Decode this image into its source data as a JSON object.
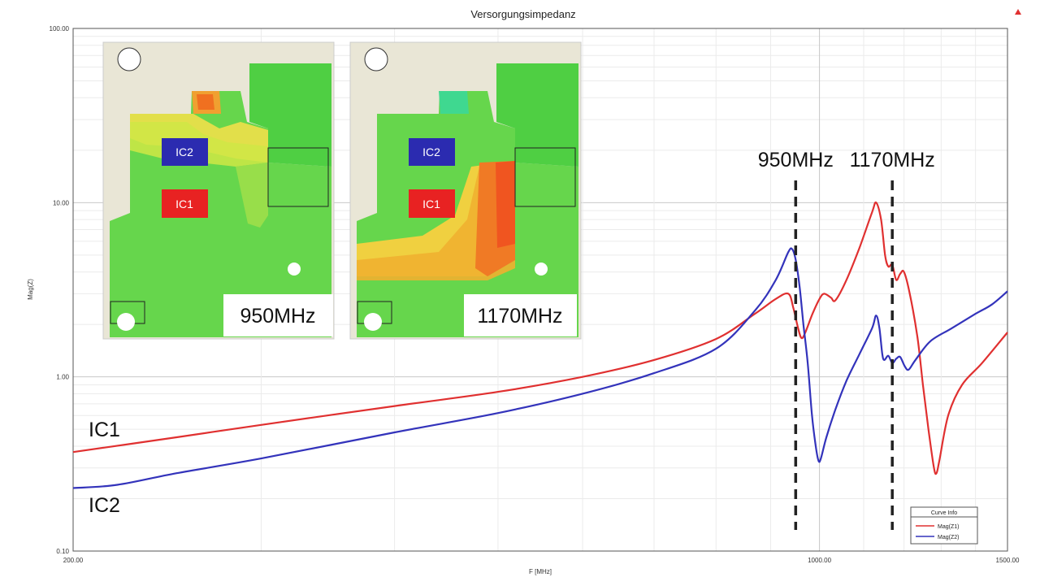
{
  "chart_data": {
    "type": "line",
    "title": "Versorgungsimpedanz",
    "xlabel": "F [MHz]",
    "ylabel": "Mag(Z)",
    "x_scale": "log",
    "y_scale": "log",
    "xlim": [
      200,
      1500
    ],
    "ylim": [
      0.1,
      100
    ],
    "x_ticks": [
      "200.00",
      "1000.00",
      "1500.00"
    ],
    "y_ticks": [
      "0.10",
      "1.00",
      "10.00",
      "100.00"
    ],
    "grid": true,
    "legend": {
      "title": "Curve Info",
      "placement": "bottom-right",
      "entries": [
        "Mag(Z1)",
        "Mag(Z2)"
      ]
    },
    "series": [
      {
        "name": "Mag(Z1)",
        "color": "#e03030",
        "points": [
          [
            200,
            0.37
          ],
          [
            250,
            0.45
          ],
          [
            300,
            0.53
          ],
          [
            400,
            0.68
          ],
          [
            500,
            0.82
          ],
          [
            600,
            1.0
          ],
          [
            700,
            1.25
          ],
          [
            800,
            1.65
          ],
          [
            870,
            2.3
          ],
          [
            910,
            2.8
          ],
          [
            935,
            3.0
          ],
          [
            945,
            2.5
          ],
          [
            955,
            1.9
          ],
          [
            962,
            1.67
          ],
          [
            970,
            1.8
          ],
          [
            985,
            2.3
          ],
          [
            1000,
            2.8
          ],
          [
            1010,
            3.0
          ],
          [
            1025,
            2.85
          ],
          [
            1035,
            2.75
          ],
          [
            1060,
            3.6
          ],
          [
            1090,
            5.5
          ],
          [
            1120,
            8.8
          ],
          [
            1130,
            10.0
          ],
          [
            1142,
            8.0
          ],
          [
            1152,
            5.0
          ],
          [
            1160,
            4.3
          ],
          [
            1170,
            4.4
          ],
          [
            1180,
            3.6
          ],
          [
            1190,
            3.9
          ],
          [
            1200,
            4.0
          ],
          [
            1215,
            3.0
          ],
          [
            1235,
            1.7
          ],
          [
            1250,
            0.9
          ],
          [
            1265,
            0.5
          ],
          [
            1280,
            0.3
          ],
          [
            1287,
            0.28
          ],
          [
            1295,
            0.33
          ],
          [
            1320,
            0.6
          ],
          [
            1360,
            0.9
          ],
          [
            1420,
            1.2
          ],
          [
            1500,
            1.8
          ]
        ]
      },
      {
        "name": "Mag(Z2)",
        "color": "#3333bb",
        "points": [
          [
            200,
            0.23
          ],
          [
            220,
            0.24
          ],
          [
            250,
            0.28
          ],
          [
            300,
            0.34
          ],
          [
            400,
            0.48
          ],
          [
            500,
            0.62
          ],
          [
            600,
            0.8
          ],
          [
            700,
            1.05
          ],
          [
            800,
            1.45
          ],
          [
            870,
            2.4
          ],
          [
            910,
            3.6
          ],
          [
            935,
            5.2
          ],
          [
            943,
            5.4
          ],
          [
            950,
            4.7
          ],
          [
            958,
            3.3
          ],
          [
            966,
            2.0
          ],
          [
            975,
            1.2
          ],
          [
            984,
            0.6
          ],
          [
            992,
            0.4
          ],
          [
            998,
            0.33
          ],
          [
            1003,
            0.34
          ],
          [
            1015,
            0.45
          ],
          [
            1035,
            0.65
          ],
          [
            1060,
            0.95
          ],
          [
            1090,
            1.35
          ],
          [
            1120,
            1.9
          ],
          [
            1130,
            2.25
          ],
          [
            1138,
            1.9
          ],
          [
            1145,
            1.35
          ],
          [
            1150,
            1.25
          ],
          [
            1160,
            1.32
          ],
          [
            1170,
            1.2
          ],
          [
            1180,
            1.27
          ],
          [
            1190,
            1.3
          ],
          [
            1202,
            1.15
          ],
          [
            1212,
            1.1
          ],
          [
            1230,
            1.25
          ],
          [
            1270,
            1.6
          ],
          [
            1330,
            1.9
          ],
          [
            1400,
            2.3
          ],
          [
            1450,
            2.6
          ],
          [
            1500,
            3.1
          ]
        ]
      }
    ],
    "markers": [
      {
        "label": "950MHz",
        "x": 950
      },
      {
        "label": "1170MHz",
        "x": 1170
      }
    ],
    "curve_labels": [
      {
        "text": "IC1"
      },
      {
        "text": "IC2"
      }
    ],
    "insets": [
      {
        "caption": "950MHz",
        "chip1": "IC2",
        "chip2": "IC1"
      },
      {
        "caption": "1170MHz",
        "chip1": "IC2",
        "chip2": "IC1"
      }
    ]
  }
}
